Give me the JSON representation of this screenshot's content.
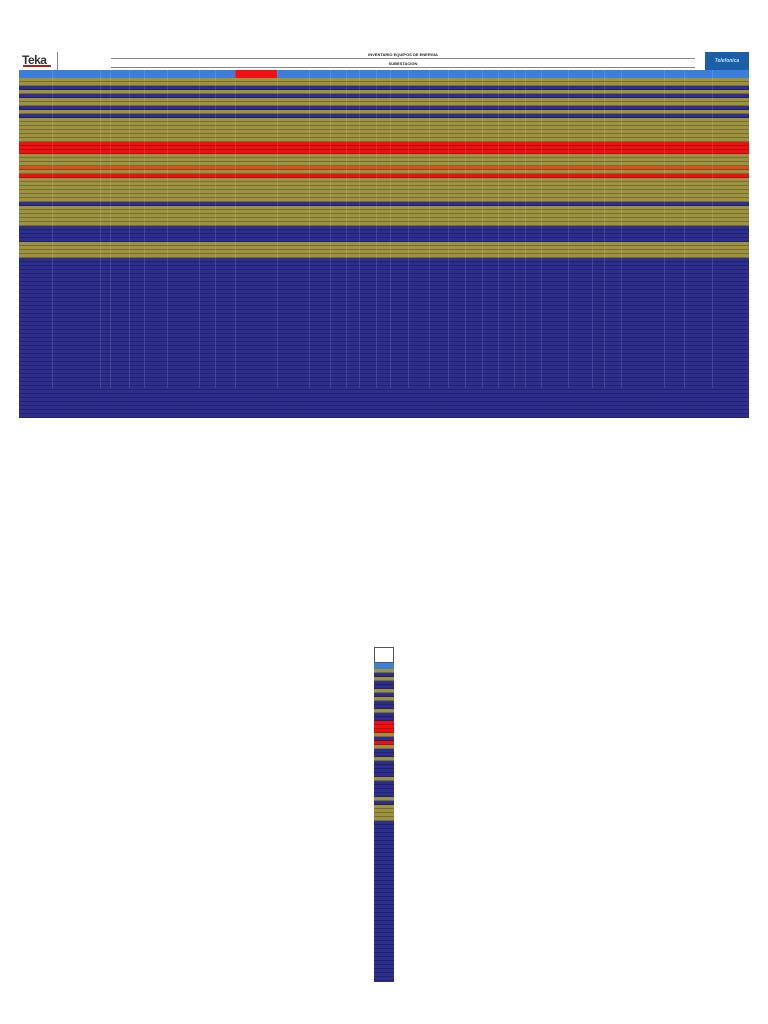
{
  "header": {
    "logo_left": "Teka",
    "title": "INVENTARIO EQUIPOS DE ENERGIA",
    "subtitle": "SUBESTACION",
    "logo_right": "Telefonica"
  },
  "colors": {
    "blue": "#2e2e8e",
    "olive": "#9c9240",
    "red": "#ee1111",
    "orange": "#d9501a",
    "header_blue": "#3c7fd8"
  },
  "rows": [
    "o",
    "o",
    "b",
    "o",
    "b",
    "o",
    "o",
    "b",
    "o",
    "b",
    "o",
    "o",
    "o",
    "o",
    "o",
    "o",
    "r",
    "r",
    "r",
    "o",
    "o",
    "o",
    "or",
    "o",
    "r",
    "o",
    "o",
    "o",
    "o",
    "o",
    "o",
    "b",
    "o",
    "o",
    "o",
    "o",
    "o",
    "b",
    "b",
    "b",
    "b",
    "o",
    "o",
    "o",
    "o"
  ],
  "empty_rows": 40,
  "mini_rows": [
    "o",
    "b",
    "o",
    "b",
    "b",
    "o",
    "b",
    "o",
    "b",
    "b",
    "o",
    "b",
    "b",
    "r",
    "r",
    "r",
    "o",
    "b",
    "r",
    "o",
    "b",
    "b",
    "o",
    "b",
    "b",
    "b",
    "b",
    "o",
    "b",
    "b",
    "b",
    "b",
    "o",
    "b",
    "o",
    "o",
    "o",
    "o"
  ],
  "mini_empty_rows": 40
}
